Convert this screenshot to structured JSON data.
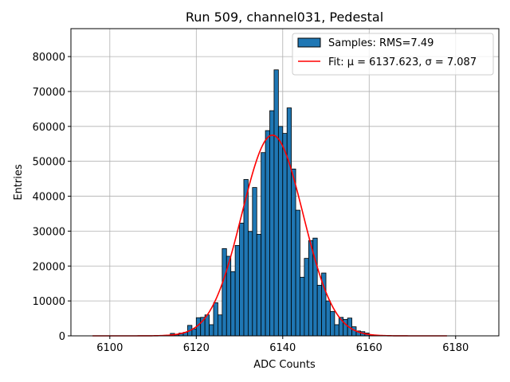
{
  "chart_data": {
    "type": "bar",
    "title": "Run 509, channel031, Pedestal",
    "xlabel": "ADC Counts",
    "ylabel": "Entries",
    "xlim": [
      6091,
      6190
    ],
    "ylim": [
      0,
      88000
    ],
    "xticks": [
      6100,
      6120,
      6140,
      6160,
      6180
    ],
    "yticks": [
      0,
      10000,
      20000,
      30000,
      40000,
      50000,
      60000,
      70000,
      80000
    ],
    "grid": true,
    "legend_position": "top-right",
    "series": [
      {
        "name": "Samples: RMS=7.49",
        "kind": "histogram",
        "color": "#1f77b4",
        "edge_color": "#000000",
        "bin_width": 1,
        "bins": [
          6113,
          6114,
          6115,
          6116,
          6117,
          6118,
          6119,
          6120,
          6121,
          6122,
          6123,
          6124,
          6125,
          6126,
          6127,
          6128,
          6129,
          6130,
          6131,
          6132,
          6133,
          6134,
          6135,
          6136,
          6137,
          6138,
          6139,
          6140,
          6141,
          6142,
          6143,
          6144,
          6145,
          6146,
          6147,
          6148,
          6149,
          6150,
          6151,
          6152,
          6153,
          6154,
          6155,
          6156,
          6157,
          6158,
          6159,
          6160
        ],
        "values": [
          200,
          700,
          300,
          800,
          1000,
          3000,
          2000,
          5200,
          5300,
          6000,
          3200,
          9500,
          6000,
          25000,
          22800,
          18400,
          25900,
          32300,
          44800,
          29900,
          42500,
          29100,
          52500,
          58800,
          64500,
          76200,
          60000,
          58000,
          65300,
          47800,
          36000,
          16800,
          22200,
          27300,
          28000,
          14500,
          18000,
          10000,
          7000,
          3200,
          5300,
          4700,
          5100,
          2600,
          1400,
          1200,
          800,
          300
        ]
      },
      {
        "name": "Fit: μ = 6137.623, σ = 7.087",
        "kind": "gaussian-fit",
        "color": "#ff0000",
        "mu": 6137.623,
        "sigma": 7.087,
        "amplitude": 57500,
        "x_range": [
          6096,
          6178
        ]
      }
    ]
  }
}
